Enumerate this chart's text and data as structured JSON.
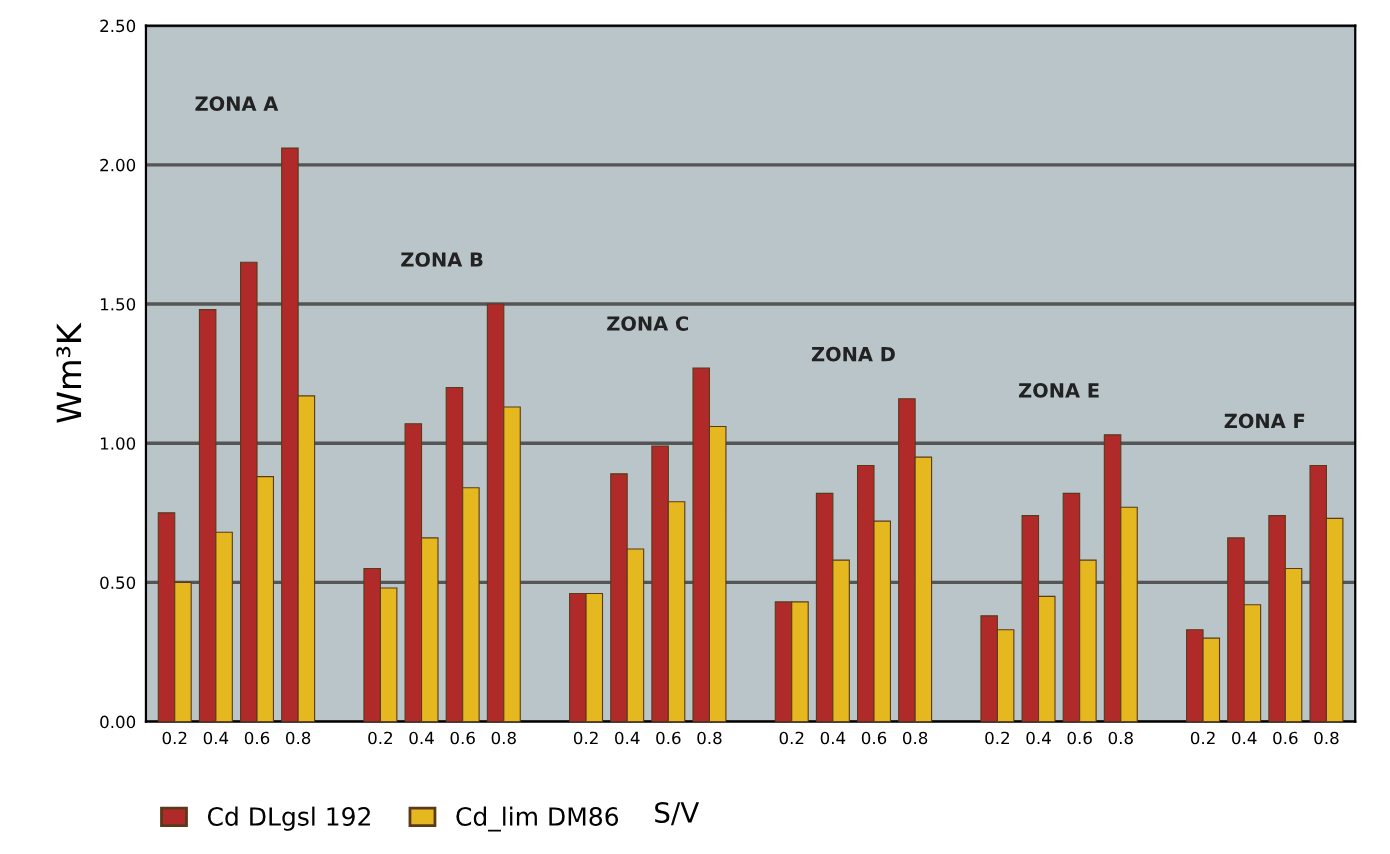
{
  "chart_data": {
    "type": "bar",
    "xlabel": "S/V",
    "ylabel": "Wm³K",
    "categories": [
      "0.2",
      "0.4",
      "0.6",
      "0.8",
      null,
      "0.2",
      "0.4",
      "0.6",
      "0.8",
      null,
      "0.2",
      "0.4",
      "0.6",
      "0.8",
      null,
      "0.2",
      "0.4",
      "0.6",
      "0.8",
      null,
      "0.2",
      "0.4",
      "0.6",
      "0.8",
      null,
      "0.2",
      "0.4",
      "0.6",
      "0.8"
    ],
    "series": [
      {
        "name": "Cd DLgsl 192",
        "color": "#b02a2a",
        "values": [
          0.75,
          1.48,
          1.65,
          2.06,
          null,
          0.55,
          1.07,
          1.2,
          1.5,
          null,
          0.46,
          0.89,
          0.99,
          1.27,
          null,
          0.43,
          0.82,
          0.92,
          1.16,
          null,
          0.38,
          0.74,
          0.82,
          1.03,
          null,
          0.33,
          0.66,
          0.74,
          0.92
        ]
      },
      {
        "name": "Cd_lim DM86",
        "color": "#e6b820",
        "values": [
          0.5,
          0.68,
          0.88,
          1.17,
          null,
          0.48,
          0.66,
          0.84,
          1.13,
          null,
          0.46,
          0.62,
          0.79,
          1.06,
          null,
          0.43,
          0.58,
          0.72,
          0.95,
          null,
          0.33,
          0.45,
          0.58,
          0.77,
          null,
          0.3,
          0.42,
          0.55,
          0.73
        ]
      }
    ],
    "annotations": [
      "ZONA A",
      "ZONA B",
      "ZONA C",
      "ZONA D",
      "ZONA E",
      "ZONA F"
    ],
    "ylim": [
      0,
      2.5
    ],
    "yticks": [
      {
        "value": 0,
        "label": "0.00"
      },
      {
        "value": 0.5,
        "label": "0.50"
      },
      {
        "value": 1,
        "label": "1.00"
      },
      {
        "value": 1.5,
        "label": "1.50"
      },
      {
        "value": 2,
        "label": "2.00"
      },
      {
        "value": 2.5,
        "label": "2.50"
      }
    ],
    "grid": "y",
    "legend": "bottom left"
  }
}
